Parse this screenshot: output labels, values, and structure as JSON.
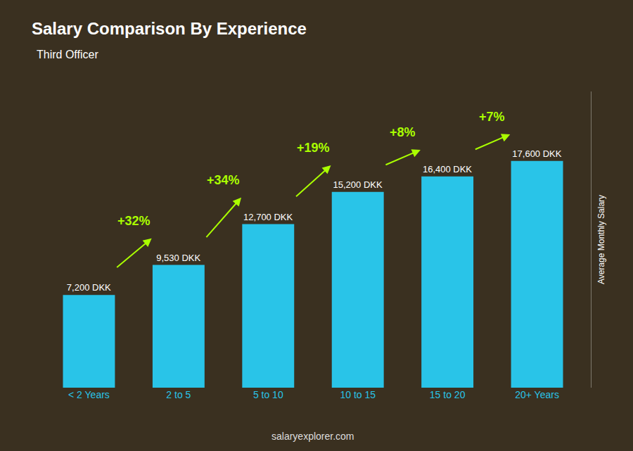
{
  "chart_data": {
    "type": "bar",
    "title": "Salary Comparison By Experience",
    "subtitle": "Third Officer",
    "ylabel": "Average Monthly Salary",
    "categories": [
      "< 2 Years",
      "2 to 5",
      "5 to 10",
      "10 to 15",
      "15 to 20",
      "20+ Years"
    ],
    "values": [
      7200,
      9530,
      12700,
      15200,
      16400,
      17600
    ],
    "value_labels": [
      "7,200 DKK",
      "9,530 DKK",
      "12,700 DKK",
      "15,200 DKK",
      "16,400 DKK",
      "17,600 DKK"
    ],
    "data_labels": true,
    "color": "#29c4e8",
    "ylim": [
      0,
      23000
    ],
    "tick_labels": "x",
    "grid": false,
    "annotations": [
      {
        "text": "+32%",
        "color": "#aaff00"
      },
      {
        "text": "+34%",
        "color": "#aaff00"
      },
      {
        "text": "+19%",
        "color": "#aaff00"
      },
      {
        "text": "+8%",
        "color": "#aaff00"
      },
      {
        "text": "+7%",
        "color": "#aaff00"
      }
    ],
    "source": "salaryexplorer.com"
  }
}
